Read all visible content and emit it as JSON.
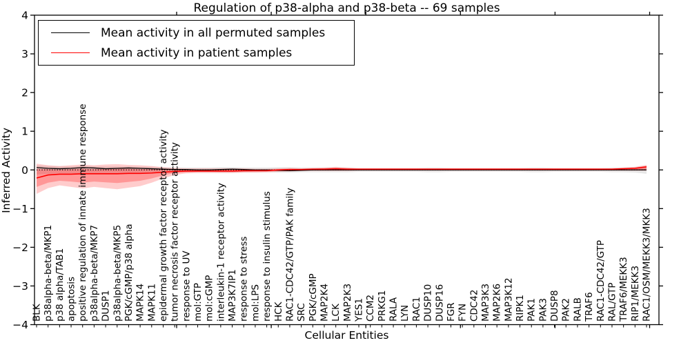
{
  "figure": {
    "title": "Regulation of p38-alpha and p38-beta -- 69 samples",
    "xlabel": "Cellular Entities",
    "ylabel": "Inferred Activity"
  },
  "chart_data": {
    "type": "line",
    "title": "Regulation of p38-alpha and p38-beta -- 69 samples",
    "xlabel": "Cellular Entities",
    "ylabel": "Inferred Activity",
    "ylim": [
      -4,
      4
    ],
    "yticks": [
      -4,
      -3,
      -2,
      -1,
      0,
      1,
      2,
      3,
      4
    ],
    "grid": false,
    "zero_line": {
      "style": "dotted",
      "color": "#000000",
      "y": 0
    },
    "legend": {
      "position": "top-left",
      "entries": [
        {
          "label": "Mean activity in all permuted samples",
          "color": "#000000"
        },
        {
          "label": "Mean activity in patient samples",
          "color": "#ff0000"
        }
      ]
    },
    "categories": [
      "BLK",
      "p38alpha-beta/MKP1",
      "p38 alpha/TAB1",
      "apoptosis",
      "positive regulation of innate immune response",
      "p38alpha-beta/MKP7",
      "DUSP1",
      "p38alpha-beta/MKP5",
      "PGK/cGMP/p38 alpha",
      "MAPK14",
      "MAPK11",
      "epidermal growth factor receptor activity",
      "tumor necrosis factor receptor activity",
      "response to UV",
      "mol:GTP",
      "mol:cGMP",
      "interleukin-1 receptor activity",
      "MAP3K7IP1",
      "response to stress",
      "mol:LPS",
      "response to insulin stimulus",
      "HCK",
      "RAC1-CDC42/GTP/PAK family",
      "SRC",
      "PGK/cGMP",
      "MAP2K4",
      "LCK",
      "MAP2K3",
      "YES1",
      "CCM2",
      "PRKG1",
      "RALA",
      "LYN",
      "RAC1",
      "DUSP10",
      "DUSP16",
      "FGR",
      "FYN",
      "CDC42",
      "MAP3K3",
      "MAP2K6",
      "MAP3K12",
      "RIPK1",
      "PAK1",
      "PAK3",
      "DUSP8",
      "PAK2",
      "RALB",
      "TRAF6",
      "RAC1-CDC42/GTP",
      "RAL/GTP",
      "TRAF6/MEKK3",
      "RIP1/MEKK3",
      "RAC1/OSM/MEKK3/MKK3"
    ],
    "series": [
      {
        "name": "Mean activity in all permuted samples",
        "color": "#000000",
        "values": [
          0.06,
          0.04,
          0.03,
          0.04,
          0.06,
          0.05,
          0.03,
          0.04,
          0.05,
          0.04,
          0.03,
          0.02,
          0.01,
          0.01,
          0.0,
          0.0,
          0.01,
          0.02,
          0.01,
          0.0,
          0.0,
          -0.01,
          -0.02,
          -0.01,
          0.0,
          0.0,
          0.0,
          0.0,
          0.0,
          0.0,
          0.0,
          0.0,
          0.0,
          0.0,
          0.0,
          0.0,
          0.0,
          0.0,
          0.0,
          0.0,
          0.0,
          0.0,
          0.0,
          0.0,
          0.0,
          0.0,
          0.0,
          0.0,
          0.0,
          0.0,
          0.0,
          0.0,
          0.0,
          0.0
        ]
      },
      {
        "name": "Mean activity in patient samples",
        "color": "#ff0000",
        "values": [
          -0.21,
          -0.13,
          -0.11,
          -0.11,
          -0.1,
          -0.1,
          -0.1,
          -0.1,
          -0.09,
          -0.09,
          -0.08,
          -0.06,
          -0.04,
          -0.03,
          -0.03,
          -0.03,
          -0.03,
          -0.03,
          -0.02,
          -0.02,
          -0.02,
          0.0,
          0.01,
          0.01,
          0.02,
          0.02,
          0.03,
          0.02,
          0.02,
          0.02,
          0.02,
          0.02,
          0.02,
          0.02,
          0.02,
          0.02,
          0.02,
          0.02,
          0.02,
          0.02,
          0.02,
          0.02,
          0.02,
          0.02,
          0.02,
          0.02,
          0.02,
          0.02,
          0.02,
          0.02,
          0.02,
          0.03,
          0.04,
          0.08
        ]
      }
    ],
    "bands": [
      {
        "name": "permuted-samples-spread",
        "color": "#bdbdbd",
        "opacity": 0.38,
        "upper": [
          0.12,
          0.1,
          0.09,
          0.09,
          0.1,
          0.09,
          0.09,
          0.09,
          0.09,
          0.08,
          0.08,
          0.07,
          0.06,
          0.06,
          0.06,
          0.06,
          0.07,
          0.07,
          0.06,
          0.06,
          0.06,
          0.07,
          0.07,
          0.06,
          0.06,
          0.06,
          0.06,
          0.06,
          0.05,
          0.05,
          0.05,
          0.05,
          0.05,
          0.05,
          0.06,
          0.06,
          0.05,
          0.05,
          0.05,
          0.05,
          0.05,
          0.05,
          0.05,
          0.06,
          0.06,
          0.05,
          0.05,
          0.05,
          0.05,
          0.05,
          0.06,
          0.06,
          0.07,
          0.1
        ],
        "lower": [
          -0.12,
          -0.1,
          -0.09,
          -0.09,
          -0.1,
          -0.09,
          -0.09,
          -0.09,
          -0.09,
          -0.08,
          -0.08,
          -0.07,
          -0.06,
          -0.06,
          -0.06,
          -0.06,
          -0.07,
          -0.07,
          -0.06,
          -0.06,
          -0.06,
          -0.07,
          -0.07,
          -0.06,
          -0.06,
          -0.06,
          -0.06,
          -0.06,
          -0.05,
          -0.05,
          -0.05,
          -0.05,
          -0.05,
          -0.05,
          -0.06,
          -0.06,
          -0.05,
          -0.05,
          -0.05,
          -0.05,
          -0.05,
          -0.05,
          -0.05,
          -0.06,
          -0.06,
          -0.05,
          -0.05,
          -0.05,
          -0.05,
          -0.05,
          -0.06,
          -0.06,
          -0.07,
          -0.1
        ]
      },
      {
        "name": "patient-samples-spread-outer",
        "color": "#ff0000",
        "opacity": 0.2,
        "upper": [
          0.16,
          0.12,
          0.1,
          0.12,
          0.14,
          0.12,
          0.14,
          0.15,
          0.13,
          0.12,
          0.1,
          0.07,
          0.05,
          0.04,
          0.04,
          0.04,
          0.04,
          0.04,
          0.04,
          0.03,
          0.03,
          0.04,
          0.05,
          0.04,
          0.05,
          0.06,
          0.08,
          0.06,
          0.04,
          0.04,
          0.04,
          0.04,
          0.04,
          0.04,
          0.04,
          0.04,
          0.04,
          0.04,
          0.04,
          0.04,
          0.04,
          0.04,
          0.04,
          0.04,
          0.04,
          0.04,
          0.04,
          0.04,
          0.04,
          0.04,
          0.04,
          0.06,
          0.08,
          0.13
        ],
        "lower": [
          -0.62,
          -0.47,
          -0.4,
          -0.44,
          -0.48,
          -0.44,
          -0.47,
          -0.5,
          -0.46,
          -0.42,
          -0.33,
          -0.22,
          -0.13,
          -0.09,
          -0.08,
          -0.08,
          -0.08,
          -0.08,
          -0.07,
          -0.07,
          -0.06,
          -0.05,
          -0.04,
          -0.03,
          -0.03,
          -0.03,
          -0.03,
          -0.03,
          -0.02,
          -0.02,
          -0.02,
          -0.02,
          -0.02,
          -0.02,
          -0.02,
          -0.02,
          -0.02,
          -0.02,
          -0.02,
          -0.02,
          -0.02,
          -0.02,
          -0.02,
          -0.02,
          -0.02,
          -0.02,
          -0.02,
          -0.02,
          -0.02,
          -0.02,
          -0.02,
          -0.02,
          -0.02,
          -0.02
        ]
      },
      {
        "name": "patient-samples-spread-inner",
        "color": "#ff0000",
        "opacity": 0.26,
        "upper": [
          0.02,
          0.02,
          0.01,
          0.02,
          0.03,
          0.02,
          0.03,
          0.03,
          0.03,
          0.02,
          0.02,
          0.02,
          0.01,
          0.01,
          0.01,
          0.01,
          0.01,
          0.01,
          0.01,
          0.01,
          0.01,
          0.02,
          0.03,
          0.02,
          0.03,
          0.04,
          0.05,
          0.04,
          0.03,
          0.03,
          0.03,
          0.03,
          0.03,
          0.03,
          0.03,
          0.03,
          0.03,
          0.03,
          0.03,
          0.03,
          0.03,
          0.03,
          0.03,
          0.03,
          0.03,
          0.03,
          0.03,
          0.03,
          0.03,
          0.03,
          0.03,
          0.04,
          0.06,
          0.1
        ],
        "lower": [
          -0.44,
          -0.33,
          -0.28,
          -0.3,
          -0.33,
          -0.3,
          -0.32,
          -0.34,
          -0.31,
          -0.28,
          -0.22,
          -0.14,
          -0.08,
          -0.06,
          -0.05,
          -0.05,
          -0.05,
          -0.05,
          -0.05,
          -0.04,
          -0.04,
          -0.03,
          -0.02,
          -0.01,
          -0.01,
          -0.01,
          -0.01,
          -0.01,
          -0.01,
          -0.01,
          -0.01,
          -0.01,
          -0.01,
          -0.01,
          -0.01,
          -0.01,
          -0.01,
          -0.01,
          -0.01,
          -0.01,
          -0.01,
          -0.01,
          -0.01,
          -0.01,
          -0.01,
          -0.01,
          -0.01,
          -0.01,
          -0.01,
          -0.01,
          -0.01,
          -0.01,
          -0.01,
          -0.01
        ]
      }
    ]
  }
}
